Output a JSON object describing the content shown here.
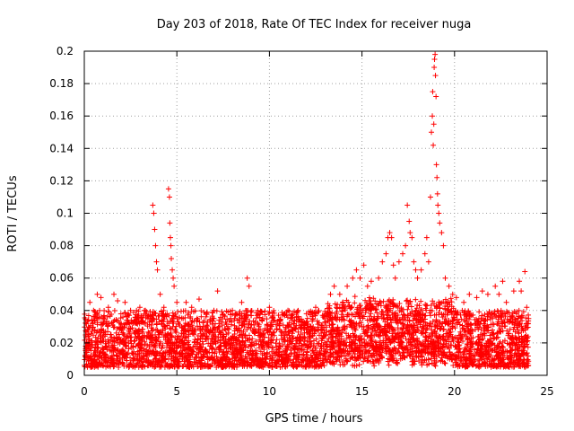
{
  "chart_data": {
    "type": "scatter",
    "title": "Day 203 of 2018, Rate Of TEC Index for receiver nuga",
    "xlabel": "GPS time / hours",
    "ylabel": "ROTI / TECUs",
    "xlim": [
      0,
      25
    ],
    "ylim": [
      0,
      0.2
    ],
    "x_ticks": [
      0,
      5,
      10,
      15,
      20,
      25
    ],
    "y_ticks": [
      0,
      0.02,
      0.04,
      0.06,
      0.08,
      0.1,
      0.12,
      0.14,
      0.16,
      0.18,
      0.2
    ],
    "grid": true,
    "marker": "+",
    "color": "#ff0000",
    "data_extent_hours": [
      0,
      24
    ],
    "background_band": {
      "min": 0.005,
      "max": 0.04
    },
    "series": [
      {
        "points": [
          [
            0.3,
            0.045
          ],
          [
            0.5,
            0.04
          ],
          [
            0.7,
            0.05
          ],
          [
            0.9,
            0.048
          ],
          [
            1.3,
            0.042
          ],
          [
            1.6,
            0.05
          ],
          [
            1.8,
            0.046
          ],
          [
            2.2,
            0.045
          ],
          [
            2.5,
            0.04
          ],
          [
            3.0,
            0.042
          ],
          [
            3.3,
            0.04
          ],
          [
            3.7,
            0.105
          ],
          [
            3.75,
            0.1
          ],
          [
            3.8,
            0.09
          ],
          [
            3.85,
            0.08
          ],
          [
            3.9,
            0.07
          ],
          [
            3.95,
            0.065
          ],
          [
            4.1,
            0.05
          ],
          [
            4.3,
            0.042
          ],
          [
            4.55,
            0.115
          ],
          [
            4.6,
            0.11
          ],
          [
            4.62,
            0.094
          ],
          [
            4.65,
            0.085
          ],
          [
            4.68,
            0.08
          ],
          [
            4.7,
            0.072
          ],
          [
            4.75,
            0.065
          ],
          [
            4.8,
            0.06
          ],
          [
            4.85,
            0.055
          ],
          [
            5.0,
            0.045
          ],
          [
            5.5,
            0.045
          ],
          [
            5.8,
            0.042
          ],
          [
            6.2,
            0.047
          ],
          [
            7.0,
            0.04
          ],
          [
            7.2,
            0.052
          ],
          [
            8.0,
            0.04
          ],
          [
            8.5,
            0.045
          ],
          [
            8.8,
            0.06
          ],
          [
            8.9,
            0.055
          ],
          [
            9.5,
            0.038
          ],
          [
            10.0,
            0.042
          ],
          [
            11.0,
            0.04
          ],
          [
            12.0,
            0.038
          ],
          [
            12.5,
            0.042
          ],
          [
            13.3,
            0.05
          ],
          [
            13.5,
            0.055
          ],
          [
            13.8,
            0.05
          ],
          [
            14.2,
            0.055
          ],
          [
            14.5,
            0.06
          ],
          [
            14.7,
            0.065
          ],
          [
            14.9,
            0.06
          ],
          [
            15.1,
            0.068
          ],
          [
            15.3,
            0.055
          ],
          [
            15.5,
            0.058
          ],
          [
            15.9,
            0.06
          ],
          [
            16.1,
            0.07
          ],
          [
            16.3,
            0.075
          ],
          [
            16.4,
            0.085
          ],
          [
            16.5,
            0.088
          ],
          [
            16.6,
            0.085
          ],
          [
            16.7,
            0.068
          ],
          [
            16.8,
            0.06
          ],
          [
            17.0,
            0.07
          ],
          [
            17.2,
            0.075
          ],
          [
            17.35,
            0.08
          ],
          [
            17.45,
            0.105
          ],
          [
            17.55,
            0.095
          ],
          [
            17.6,
            0.088
          ],
          [
            17.7,
            0.085
          ],
          [
            17.8,
            0.07
          ],
          [
            17.9,
            0.065
          ],
          [
            18.0,
            0.06
          ],
          [
            18.2,
            0.065
          ],
          [
            18.4,
            0.075
          ],
          [
            18.5,
            0.085
          ],
          [
            18.6,
            0.07
          ],
          [
            18.7,
            0.11
          ],
          [
            18.75,
            0.15
          ],
          [
            18.8,
            0.16
          ],
          [
            18.82,
            0.175
          ],
          [
            18.85,
            0.142
          ],
          [
            18.88,
            0.155
          ],
          [
            18.9,
            0.19
          ],
          [
            18.92,
            0.195
          ],
          [
            18.95,
            0.198
          ],
          [
            18.97,
            0.185
          ],
          [
            19.0,
            0.172
          ],
          [
            19.02,
            0.13
          ],
          [
            19.05,
            0.122
          ],
          [
            19.08,
            0.112
          ],
          [
            19.1,
            0.105
          ],
          [
            19.15,
            0.1
          ],
          [
            19.2,
            0.094
          ],
          [
            19.3,
            0.088
          ],
          [
            19.4,
            0.08
          ],
          [
            19.5,
            0.06
          ],
          [
            19.7,
            0.055
          ],
          [
            19.9,
            0.05
          ],
          [
            20.1,
            0.048
          ],
          [
            20.5,
            0.045
          ],
          [
            20.8,
            0.05
          ],
          [
            21.2,
            0.048
          ],
          [
            21.5,
            0.052
          ],
          [
            21.8,
            0.05
          ],
          [
            22.2,
            0.055
          ],
          [
            22.4,
            0.05
          ],
          [
            22.6,
            0.058
          ],
          [
            22.8,
            0.045
          ],
          [
            23.2,
            0.052
          ],
          [
            23.5,
            0.058
          ],
          [
            23.6,
            0.052
          ],
          [
            23.8,
            0.064
          ],
          [
            23.9,
            0.042
          ]
        ]
      }
    ]
  }
}
